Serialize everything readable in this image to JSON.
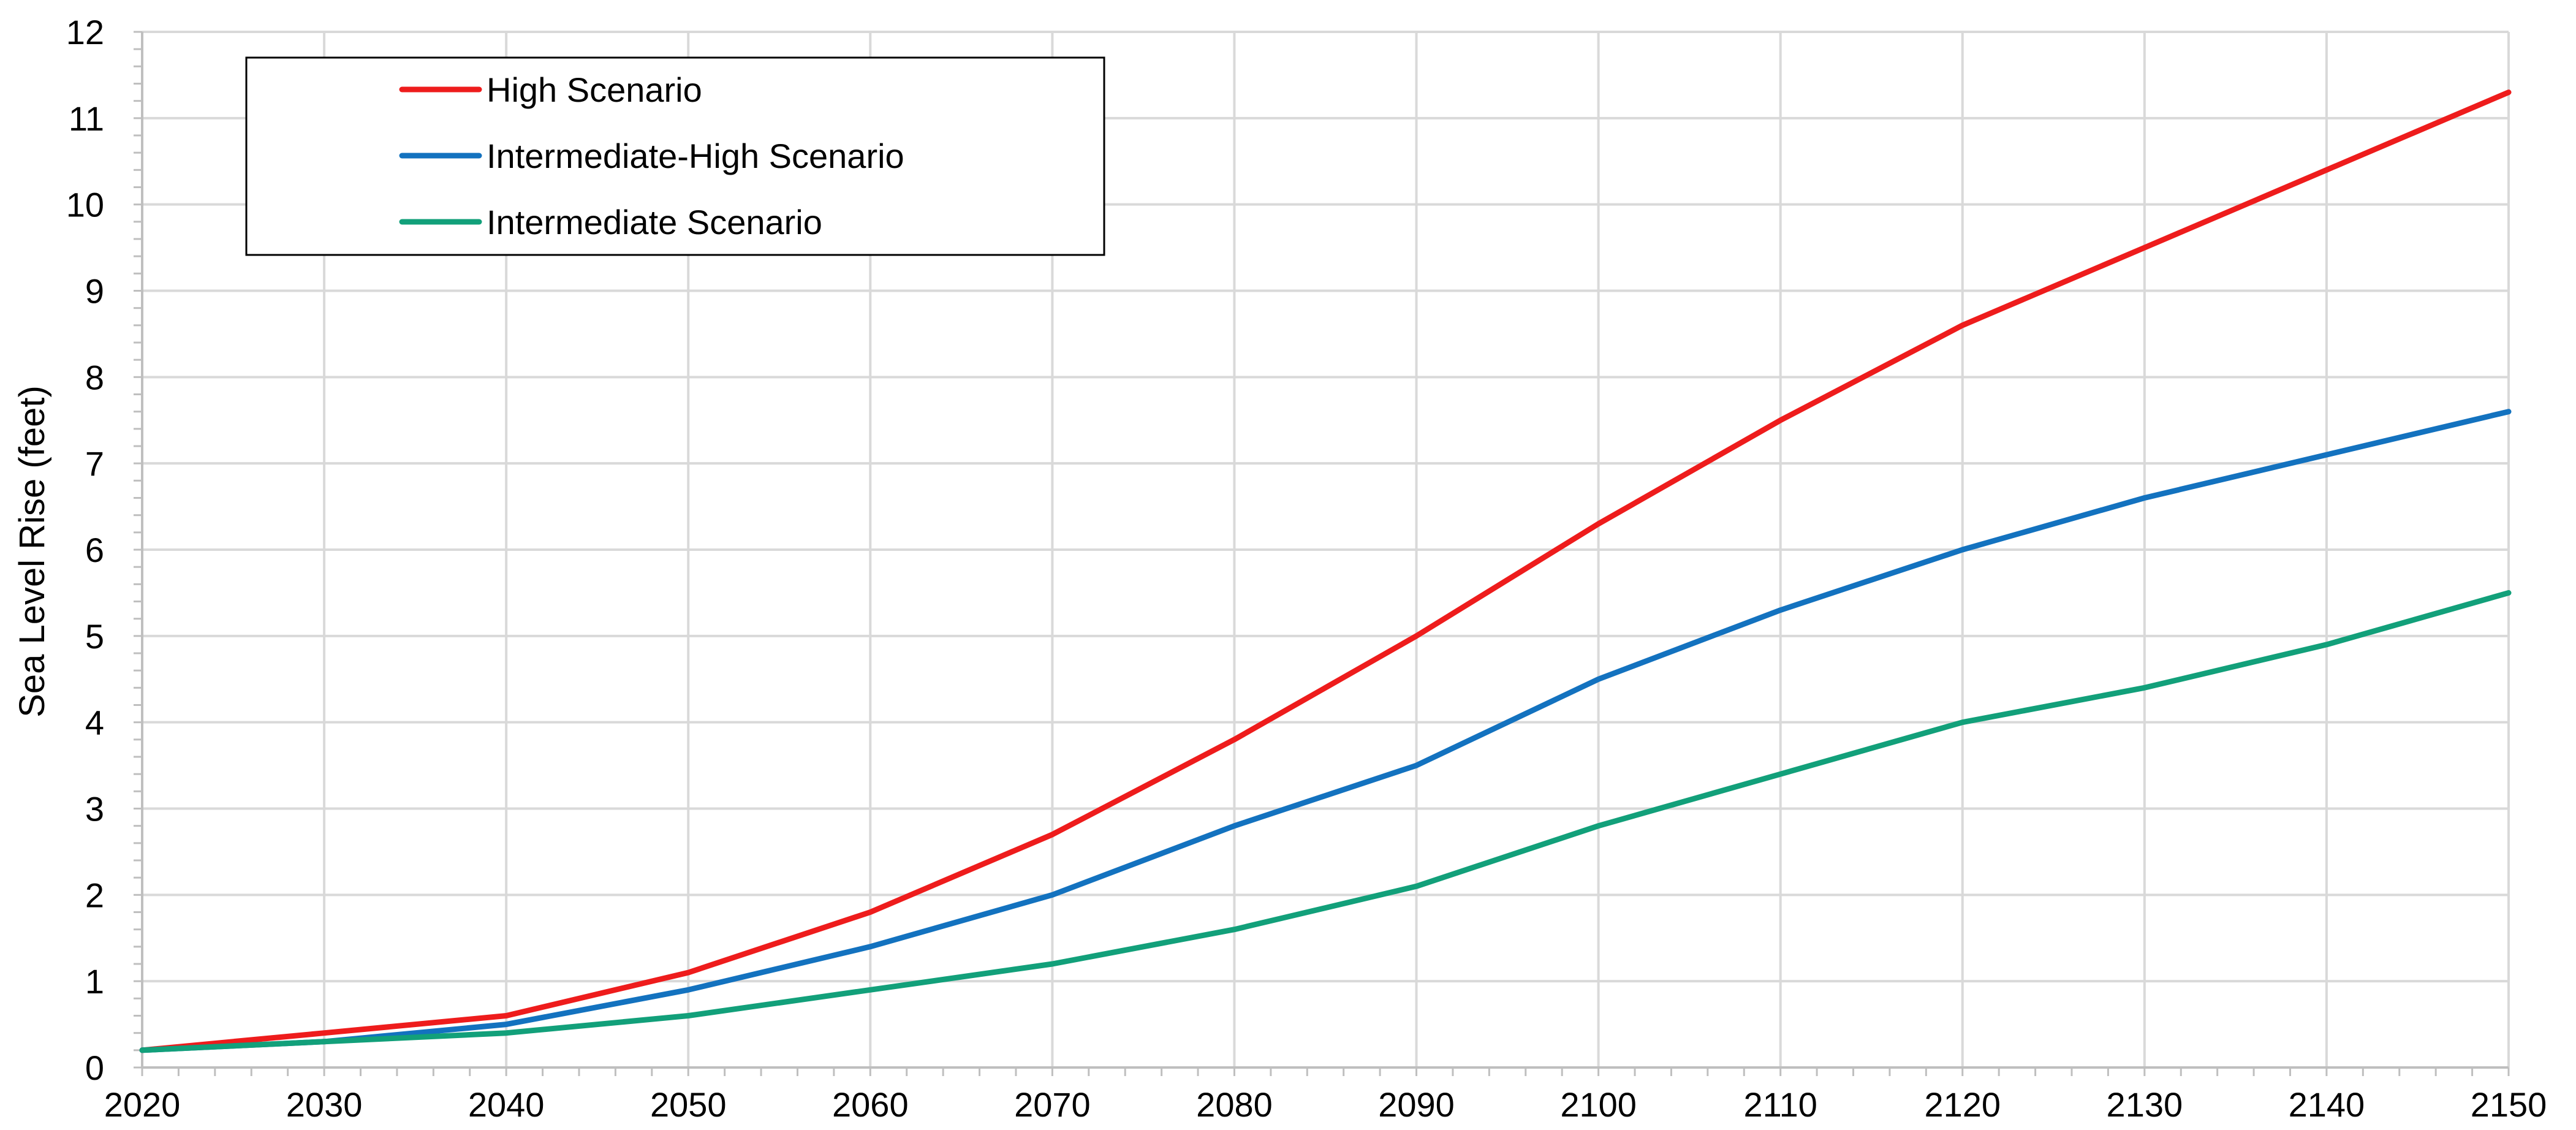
{
  "chart_data": {
    "type": "line",
    "title": "",
    "xlabel": "",
    "ylabel": "Sea Level Rise (feet)",
    "x": [
      2020,
      2030,
      2040,
      2050,
      2060,
      2070,
      2080,
      2090,
      2100,
      2110,
      2120,
      2130,
      2140,
      2150
    ],
    "x_ticks": [
      "2020",
      "2030",
      "2040",
      "2050",
      "2060",
      "2070",
      "2080",
      "2090",
      "2100",
      "2110",
      "2120",
      "2130",
      "2140",
      "2150"
    ],
    "y_ticks": [
      "0",
      "1",
      "2",
      "3",
      "4",
      "5",
      "6",
      "7",
      "8",
      "9",
      "10",
      "11",
      "12"
    ],
    "xlim": [
      2020,
      2150
    ],
    "ylim": [
      0,
      12
    ],
    "grid": true,
    "legend_position": "top-left",
    "series": [
      {
        "name": "High Scenario",
        "color": "#ee1c1c",
        "values": [
          0.2,
          0.4,
          0.6,
          1.1,
          1.8,
          2.7,
          3.8,
          5.0,
          6.3,
          7.5,
          8.6,
          9.5,
          10.4,
          11.3
        ]
      },
      {
        "name": "Intermediate-High Scenario",
        "color": "#1372bf",
        "values": [
          0.2,
          0.3,
          0.5,
          0.9,
          1.4,
          2.0,
          2.8,
          3.5,
          4.5,
          5.3,
          6.0,
          6.6,
          7.1,
          7.6
        ]
      },
      {
        "name": "Intermediate Scenario",
        "color": "#12a07a",
        "values": [
          0.2,
          0.3,
          0.4,
          0.6,
          0.9,
          1.2,
          1.6,
          2.1,
          2.8,
          3.4,
          4.0,
          4.4,
          4.9,
          5.5
        ]
      }
    ]
  }
}
